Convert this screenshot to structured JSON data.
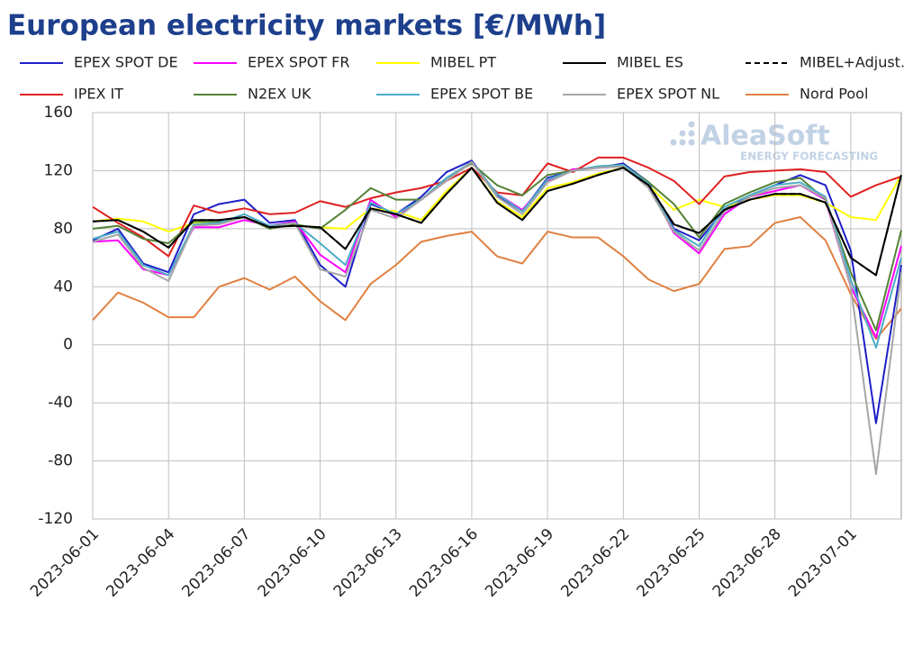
{
  "chart_data": {
    "type": "line",
    "title": "European electricity markets [€/MWh]",
    "watermark": {
      "brand": "AleaSoft",
      "tagline": "ENERGY FORECASTING"
    },
    "categories": [
      "2023-06-01",
      null,
      null,
      "2023-06-04",
      null,
      null,
      "2023-06-07",
      null,
      null,
      "2023-06-10",
      null,
      null,
      "2023-06-13",
      null,
      null,
      "2023-06-16",
      null,
      null,
      "2023-06-19",
      null,
      null,
      "2023-06-22",
      null,
      null,
      "2023-06-25",
      null,
      null,
      "2023-06-28",
      null,
      null,
      "2023-07-01",
      null,
      null
    ],
    "ylim": [
      -120,
      160
    ],
    "yticks": [
      -120,
      -80,
      -40,
      0,
      40,
      80,
      120,
      160
    ],
    "grid": true,
    "series": [
      {
        "name": "EPEX SPOT DE",
        "color": "#1f1fc8",
        "values": [
          72,
          80,
          56,
          50,
          90,
          97,
          100,
          84,
          86,
          55,
          40,
          97,
          90,
          102,
          119,
          127,
          103,
          92,
          115,
          120,
          122,
          125,
          112,
          80,
          72,
          93,
          103,
          110,
          117,
          110,
          65,
          -54,
          55
        ]
      },
      {
        "name": "EPEX SPOT FR",
        "color": "#ff00ff",
        "values": [
          71,
          72,
          52,
          48,
          81,
          81,
          86,
          82,
          85,
          62,
          50,
          100,
          88,
          100,
          113,
          126,
          104,
          93,
          113,
          121,
          122,
          123,
          110,
          77,
          63,
          90,
          102,
          106,
          110,
          100,
          40,
          5,
          68
        ]
      },
      {
        "name": "MIBEL PT",
        "color": "#ffff00",
        "values": [
          85,
          87,
          85,
          78,
          84,
          84,
          88,
          81,
          82,
          81,
          80,
          94,
          92,
          86,
          106,
          122,
          99,
          88,
          108,
          112,
          118,
          122,
          110,
          93,
          100,
          95,
          100,
          103,
          103,
          98,
          88,
          86,
          117
        ]
      },
      {
        "name": "MIBEL ES",
        "color": "#000000",
        "values": [
          85,
          86,
          78,
          67,
          86,
          86,
          88,
          81,
          82,
          81,
          66,
          94,
          90,
          84,
          104,
          122,
          98,
          86,
          106,
          111,
          117,
          122,
          110,
          83,
          77,
          93,
          100,
          104,
          104,
          98,
          60,
          48,
          117
        ]
      },
      {
        "name": "MIBEL+Adjust.",
        "color": "#000000",
        "dashed": true,
        "values": [
          85,
          86,
          78,
          67,
          86,
          86,
          88,
          81,
          82,
          81,
          66,
          94,
          90,
          84,
          104,
          122,
          98,
          86,
          106,
          111,
          117,
          122,
          110,
          83,
          77,
          93,
          100,
          104,
          104,
          98,
          60,
          48,
          117
        ]
      },
      {
        "name": "IPEX IT",
        "color": "#e02020",
        "values": [
          95,
          84,
          74,
          61,
          96,
          91,
          94,
          90,
          91,
          99,
          95,
          101,
          105,
          108,
          113,
          122,
          105,
          103,
          125,
          119,
          129,
          129,
          122,
          113,
          97,
          116,
          119,
          120,
          121,
          119,
          102,
          110,
          116
        ]
      },
      {
        "name": "N2EX UK",
        "color": "#548235",
        "values": [
          80,
          82,
          73,
          70,
          85,
          85,
          88,
          80,
          83,
          80,
          93,
          108,
          100,
          100,
          115,
          125,
          110,
          103,
          117,
          120,
          123,
          124,
          112,
          97,
          74,
          97,
          105,
          112,
          115,
          100,
          50,
          10,
          79
        ]
      },
      {
        "name": "EPEX SPOT BE",
        "color": "#4bacc6",
        "values": [
          73,
          78,
          55,
          48,
          83,
          84,
          90,
          82,
          84,
          70,
          55,
          98,
          90,
          100,
          115,
          126,
          104,
          92,
          114,
          120,
          123,
          124,
          111,
          79,
          68,
          95,
          103,
          110,
          112,
          102,
          45,
          -2,
          60
        ]
      },
      {
        "name": "EPEX SPOT NL",
        "color": "#a6a6a6",
        "values": [
          71,
          76,
          53,
          44,
          82,
          83,
          88,
          81,
          84,
          52,
          47,
          93,
          87,
          100,
          113,
          126,
          102,
          90,
          112,
          120,
          122,
          123,
          108,
          78,
          65,
          92,
          102,
          108,
          110,
          101,
          40,
          -89,
          50
        ]
      },
      {
        "name": "Nord Pool",
        "color": "#e08040",
        "values": [
          17,
          36,
          29,
          19,
          19,
          40,
          46,
          38,
          47,
          30,
          17,
          42,
          55,
          71,
          75,
          78,
          61,
          56,
          78,
          74,
          74,
          61,
          45,
          37,
          42,
          66,
          68,
          84,
          88,
          72,
          35,
          4,
          25
        ]
      }
    ]
  }
}
